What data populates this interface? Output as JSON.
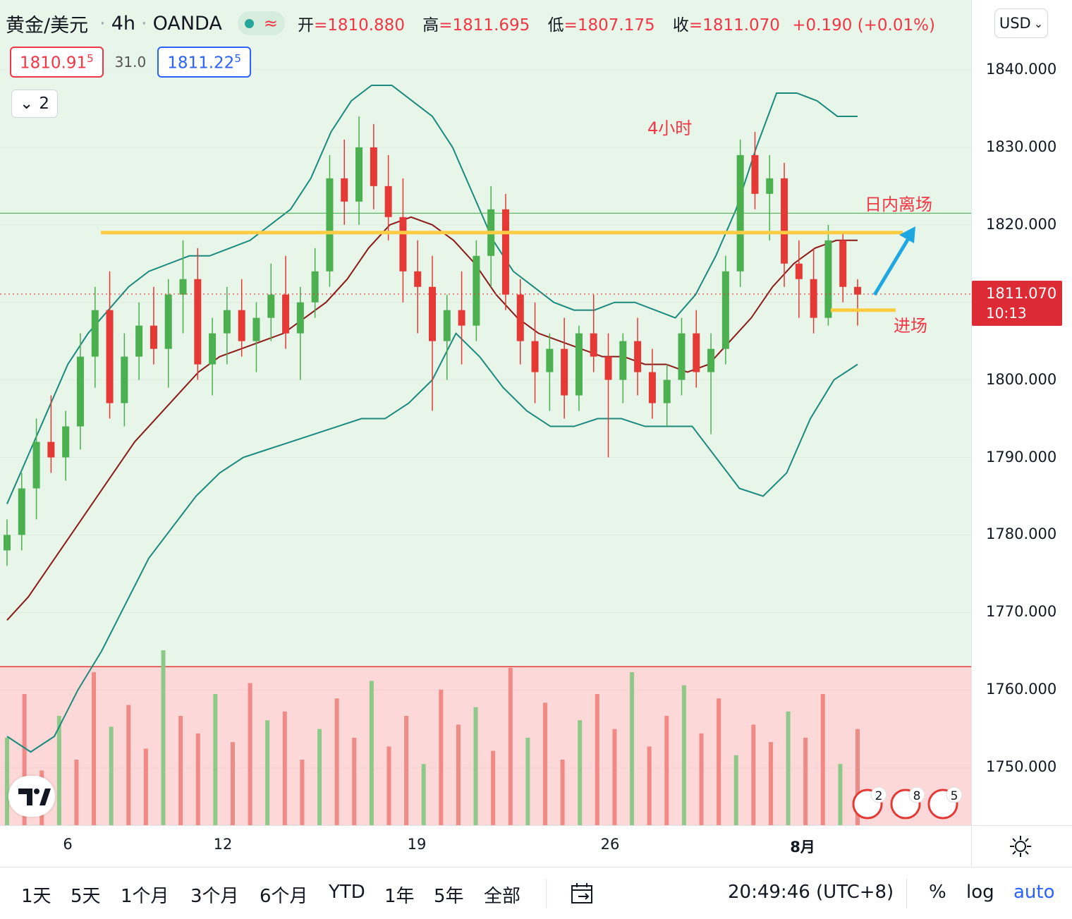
{
  "legend": {
    "symbol": "黄金/美元",
    "interval": "4h",
    "source": "OANDA",
    "wave_icon": "≈",
    "open_label": "开",
    "open": "=1810.880",
    "high_label": "高",
    "high": "=1811.695",
    "low_label": "低",
    "low": "=1807.175",
    "close_label": "收",
    "close": "=1811.070",
    "change": "+0.190 (+0.01%)",
    "bid_main": "1810.91",
    "bid_sup": "5",
    "spread": "31.0",
    "ask_main": "1811.22",
    "ask_sup": "5",
    "collapse_count": "2"
  },
  "price_axis": {
    "currency": "USD",
    "ticks": [
      "1840.000",
      "1830.000",
      "1820.000",
      "1810.000",
      "1800.000",
      "1790.000",
      "1780.000",
      "1770.000",
      "1760.000",
      "1750.000"
    ],
    "last_price": "1811.070",
    "countdown": "10:13"
  },
  "time_axis": {
    "ticks": [
      "6",
      "12",
      "19",
      "26",
      "8月"
    ]
  },
  "annotations": {
    "title": "4小时",
    "exit": "日内离场",
    "entry": "进场"
  },
  "bottom_bar": {
    "ranges": [
      "1天",
      "5天",
      "1个月",
      "3个月",
      "6个月",
      "YTD",
      "1年",
      "5年",
      "全部"
    ],
    "clock": "20:49:46 (UTC+8)",
    "percent": "%",
    "log": "log",
    "auto": "auto"
  },
  "events": [
    "2",
    "8",
    "5"
  ],
  "colors": {
    "up": "#26a69a",
    "down": "#f23645",
    "candle_up": "#4caf50",
    "candle_down": "#e53935",
    "bb_line": "#1b8a7e",
    "mid_line": "#8b1a1a",
    "yellow": "#ffcc44",
    "arrow": "#1ea7e1"
  },
  "chart_data": {
    "type": "candlestick",
    "title": "黄金/美元 · 4h · OANDA",
    "ylim": [
      1743,
      1848
    ],
    "x_ticks": [
      "6",
      "12",
      "19",
      "26",
      "8月"
    ],
    "candles": [
      [
        1778,
        1782,
        1776,
        1780
      ],
      [
        1780,
        1788,
        1778,
        1786
      ],
      [
        1786,
        1795,
        1782,
        1792
      ],
      [
        1792,
        1798,
        1788,
        1790
      ],
      [
        1790,
        1796,
        1787,
        1794
      ],
      [
        1794,
        1806,
        1791,
        1803
      ],
      [
        1803,
        1812,
        1799,
        1809
      ],
      [
        1809,
        1814,
        1795,
        1797
      ],
      [
        1797,
        1806,
        1794,
        1803
      ],
      [
        1803,
        1810,
        1800,
        1807
      ],
      [
        1807,
        1812,
        1802,
        1804
      ],
      [
        1804,
        1813,
        1799,
        1811
      ],
      [
        1811,
        1818,
        1806,
        1813
      ],
      [
        1813,
        1817,
        1800,
        1802
      ],
      [
        1802,
        1808,
        1798,
        1806
      ],
      [
        1806,
        1812,
        1802,
        1809
      ],
      [
        1809,
        1813,
        1803,
        1805
      ],
      [
        1805,
        1810,
        1801,
        1808
      ],
      [
        1808,
        1815,
        1805,
        1811
      ],
      [
        1811,
        1816,
        1804,
        1806
      ],
      [
        1806,
        1812,
        1800,
        1810
      ],
      [
        1810,
        1817,
        1808,
        1814
      ],
      [
        1814,
        1829,
        1812,
        1826
      ],
      [
        1826,
        1831,
        1820,
        1823
      ],
      [
        1823,
        1834,
        1820,
        1830
      ],
      [
        1830,
        1833,
        1822,
        1825
      ],
      [
        1825,
        1829,
        1818,
        1821
      ],
      [
        1821,
        1826,
        1810,
        1814
      ],
      [
        1814,
        1818,
        1806,
        1812
      ],
      [
        1812,
        1816,
        1796,
        1805
      ],
      [
        1805,
        1811,
        1800,
        1809
      ],
      [
        1809,
        1814,
        1802,
        1807
      ],
      [
        1807,
        1818,
        1805,
        1816
      ],
      [
        1816,
        1825,
        1812,
        1822
      ],
      [
        1822,
        1824,
        1809,
        1811
      ],
      [
        1811,
        1813,
        1802,
        1805
      ],
      [
        1805,
        1810,
        1797,
        1801
      ],
      [
        1801,
        1806,
        1796,
        1804
      ],
      [
        1804,
        1808,
        1795,
        1798
      ],
      [
        1798,
        1807,
        1796,
        1806
      ],
      [
        1806,
        1811,
        1801,
        1803
      ],
      [
        1803,
        1806,
        1790,
        1800
      ],
      [
        1800,
        1806,
        1797,
        1805
      ],
      [
        1805,
        1808,
        1798,
        1801
      ],
      [
        1801,
        1804,
        1795,
        1797
      ],
      [
        1797,
        1802,
        1794,
        1800
      ],
      [
        1800,
        1808,
        1798,
        1806
      ],
      [
        1806,
        1809,
        1799,
        1801
      ],
      [
        1801,
        1806,
        1793,
        1804
      ],
      [
        1804,
        1816,
        1802,
        1814
      ],
      [
        1814,
        1831,
        1812,
        1829
      ],
      [
        1829,
        1832,
        1822,
        1824
      ],
      [
        1824,
        1829,
        1818,
        1826
      ],
      [
        1826,
        1828,
        1812,
        1815
      ],
      [
        1815,
        1818,
        1808,
        1813
      ],
      [
        1813,
        1817,
        1806,
        1808
      ],
      [
        1808,
        1820,
        1807,
        1818
      ],
      [
        1818,
        1819,
        1810,
        1812
      ],
      [
        1812,
        1813,
        1807,
        1811
      ]
    ],
    "bollinger_upper": [
      1784,
      1790,
      1796,
      1802,
      1806,
      1809,
      1812,
      1814,
      1815,
      1816,
      1816,
      1817,
      1818,
      1820,
      1822,
      1826,
      1832,
      1836,
      1838,
      1838,
      1836,
      1834,
      1830,
      1824,
      1818,
      1814,
      1812,
      1810,
      1809,
      1809,
      1810,
      1810,
      1809,
      1808,
      1811,
      1816,
      1822,
      1830,
      1837,
      1837,
      1836,
      1834,
      1834
    ],
    "bollinger_mid": [
      1769,
      1772,
      1776,
      1780,
      1784,
      1788,
      1792,
      1795,
      1798,
      1801,
      1803,
      1804,
      1805,
      1806,
      1808,
      1810,
      1813,
      1817,
      1820,
      1821,
      1820,
      1818,
      1815,
      1811,
      1808,
      1806,
      1805,
      1804,
      1803,
      1803,
      1802,
      1802,
      1801,
      1802,
      1805,
      1808,
      1812,
      1815,
      1817,
      1818,
      1818
    ],
    "bollinger_lower": [
      1754,
      1752,
      1754,
      1760,
      1765,
      1771,
      1777,
      1781,
      1785,
      1788,
      1790,
      1791,
      1792,
      1793,
      1794,
      1795,
      1795,
      1797,
      1800,
      1806,
      1803,
      1799,
      1796,
      1794,
      1794,
      1795,
      1795,
      1794,
      1794,
      1794,
      1790,
      1786,
      1785,
      1788,
      1795,
      1800,
      1802
    ],
    "volume": [
      40,
      60,
      25,
      50,
      30,
      70,
      45,
      55,
      35,
      80,
      50,
      42,
      60,
      38,
      65,
      48,
      52,
      30,
      44,
      58,
      40,
      66,
      36,
      50,
      28,
      62,
      46,
      54,
      34,
      72,
      40,
      56,
      30,
      48,
      60,
      44,
      70,
      36,
      50,
      64,
      42,
      58,
      32,
      46,
      38,
      52,
      40,
      60,
      28,
      44
    ],
    "levels": {
      "resistance": 1819,
      "entry": 1809,
      "green_line": 1821.5,
      "volume_red_line": 1763
    }
  }
}
